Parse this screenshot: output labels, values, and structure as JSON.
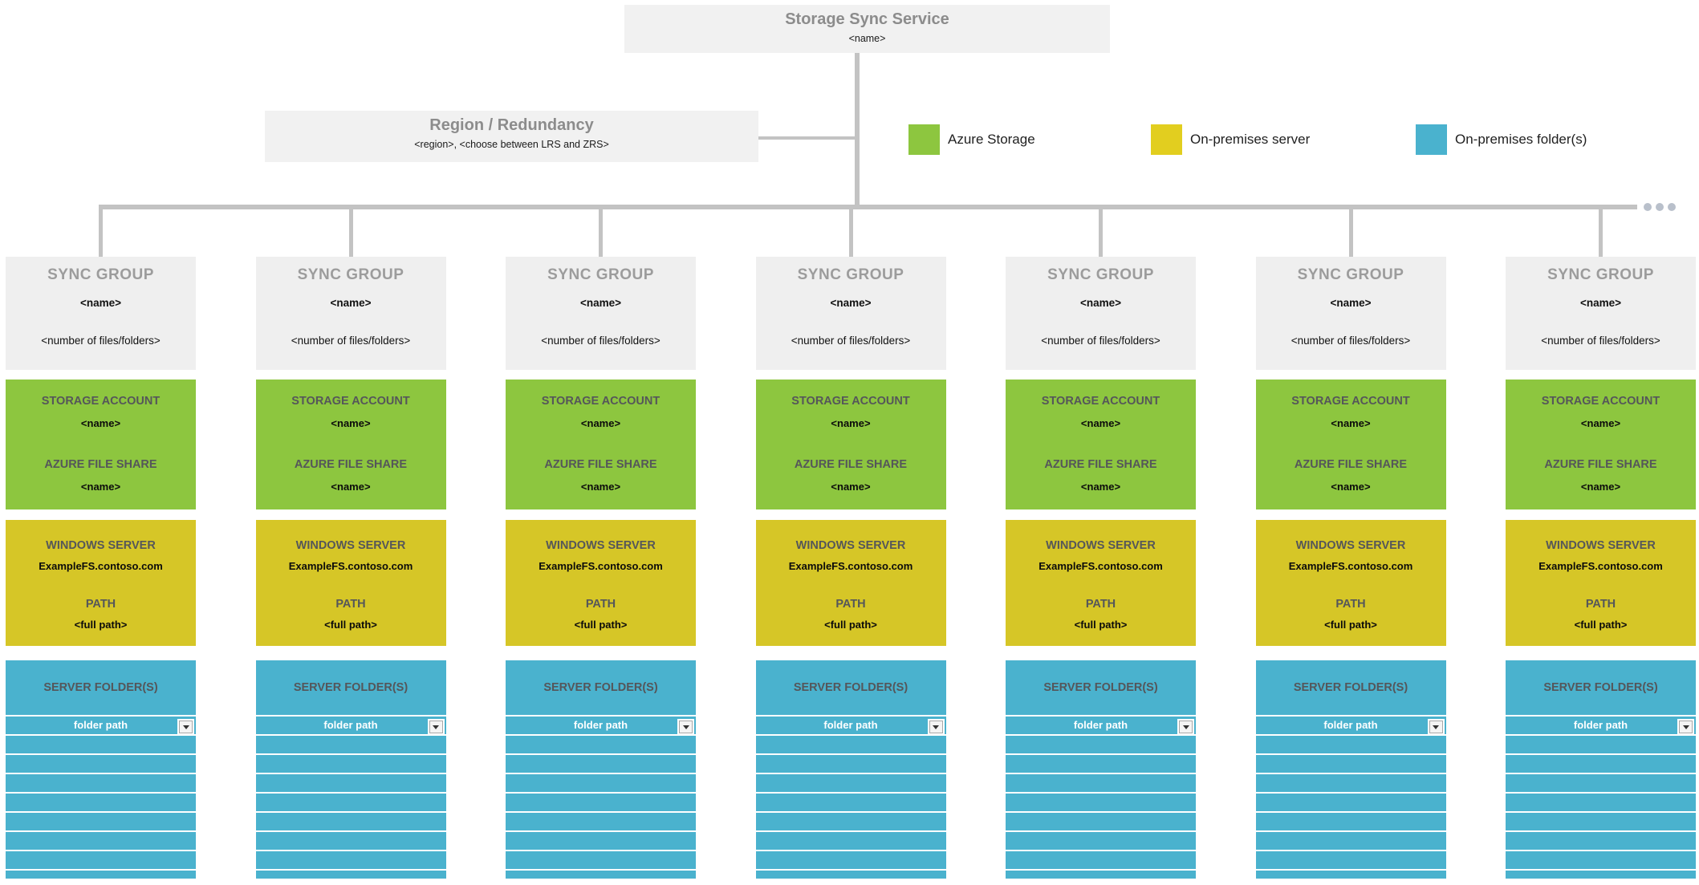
{
  "service": {
    "title": "Storage Sync Service",
    "name": "<name>"
  },
  "region": {
    "title": "Region / Redundancy",
    "subtitle": "<region>, <choose between LRS and ZRS>"
  },
  "legend": [
    {
      "label": "Azure Storage",
      "color": "#8dc63f"
    },
    {
      "label": "On-premises server",
      "color": "#e2ce1f"
    },
    {
      "label": "On-premises folder(s)",
      "color": "#4ab2ce"
    }
  ],
  "more_columns_indicator": "...",
  "colors": {
    "azure_storage_green": "#8dc63f",
    "on_premises_server_yellow": "#d6c627",
    "on_premises_folder_teal": "#4ab2ce",
    "connector_gray": "#c3c3c3",
    "box_gray": "#f1f1f1"
  },
  "columns": [
    {
      "group_title": "SYNC GROUP",
      "group_name": "<name>",
      "group_count": "<number of files/folders>",
      "storage_account_label": "STORAGE ACCOUNT",
      "storage_account_name": "<name>",
      "file_share_label": "AZURE FILE SHARE",
      "file_share_name": "<name>",
      "server_label": "WINDOWS SERVER",
      "server_name": "ExampleFS.contoso.com",
      "path_label": "PATH",
      "path_value": "<full path>",
      "folders_label": "SERVER FOLDER(S)",
      "folder_path": "folder path",
      "empty_rows": 8
    },
    {
      "group_title": "SYNC GROUP",
      "group_name": "<name>",
      "group_count": "<number of files/folders>",
      "storage_account_label": "STORAGE ACCOUNT",
      "storage_account_name": "<name>",
      "file_share_label": "AZURE FILE SHARE",
      "file_share_name": "<name>",
      "server_label": "WINDOWS SERVER",
      "server_name": "ExampleFS.contoso.com",
      "path_label": "PATH",
      "path_value": "<full path>",
      "folders_label": "SERVER FOLDER(S)",
      "folder_path": "folder path",
      "empty_rows": 8
    },
    {
      "group_title": "SYNC GROUP",
      "group_name": "<name>",
      "group_count": "<number of files/folders>",
      "storage_account_label": "STORAGE ACCOUNT",
      "storage_account_name": "<name>",
      "file_share_label": "AZURE FILE SHARE",
      "file_share_name": "<name>",
      "server_label": "WINDOWS SERVER",
      "server_name": "ExampleFS.contoso.com",
      "path_label": "PATH",
      "path_value": "<full path>",
      "folders_label": "SERVER FOLDER(S)",
      "folder_path": "folder path",
      "empty_rows": 8
    },
    {
      "group_title": "SYNC GROUP",
      "group_name": "<name>",
      "group_count": "<number of files/folders>",
      "storage_account_label": "STORAGE ACCOUNT",
      "storage_account_name": "<name>",
      "file_share_label": "AZURE FILE SHARE",
      "file_share_name": "<name>",
      "server_label": "WINDOWS SERVER",
      "server_name": "ExampleFS.contoso.com",
      "path_label": "PATH",
      "path_value": "<full path>",
      "folders_label": "SERVER FOLDER(S)",
      "folder_path": "folder path",
      "empty_rows": 8
    },
    {
      "group_title": "SYNC GROUP",
      "group_name": "<name>",
      "group_count": "<number of files/folders>",
      "storage_account_label": "STORAGE ACCOUNT",
      "storage_account_name": "<name>",
      "file_share_label": "AZURE FILE SHARE",
      "file_share_name": "<name>",
      "server_label": "WINDOWS SERVER",
      "server_name": "ExampleFS.contoso.com",
      "path_label": "PATH",
      "path_value": "<full path>",
      "folders_label": "SERVER FOLDER(S)",
      "folder_path": "folder path",
      "empty_rows": 8
    },
    {
      "group_title": "SYNC GROUP",
      "group_name": "<name>",
      "group_count": "<number of files/folders>",
      "storage_account_label": "STORAGE ACCOUNT",
      "storage_account_name": "<name>",
      "file_share_label": "AZURE FILE SHARE",
      "file_share_name": "<name>",
      "server_label": "WINDOWS SERVER",
      "server_name": "ExampleFS.contoso.com",
      "path_label": "PATH",
      "path_value": "<full path>",
      "folders_label": "SERVER FOLDER(S)",
      "folder_path": "folder path",
      "empty_rows": 8
    },
    {
      "group_title": "SYNC GROUP",
      "group_name": "<name>",
      "group_count": "<number of files/folders>",
      "storage_account_label": "STORAGE ACCOUNT",
      "storage_account_name": "<name>",
      "file_share_label": "AZURE FILE SHARE",
      "file_share_name": "<name>",
      "server_label": "WINDOWS SERVER",
      "server_name": "ExampleFS.contoso.com",
      "path_label": "PATH",
      "path_value": "<full path>",
      "folders_label": "SERVER FOLDER(S)",
      "folder_path": "folder path",
      "empty_rows": 8
    }
  ]
}
